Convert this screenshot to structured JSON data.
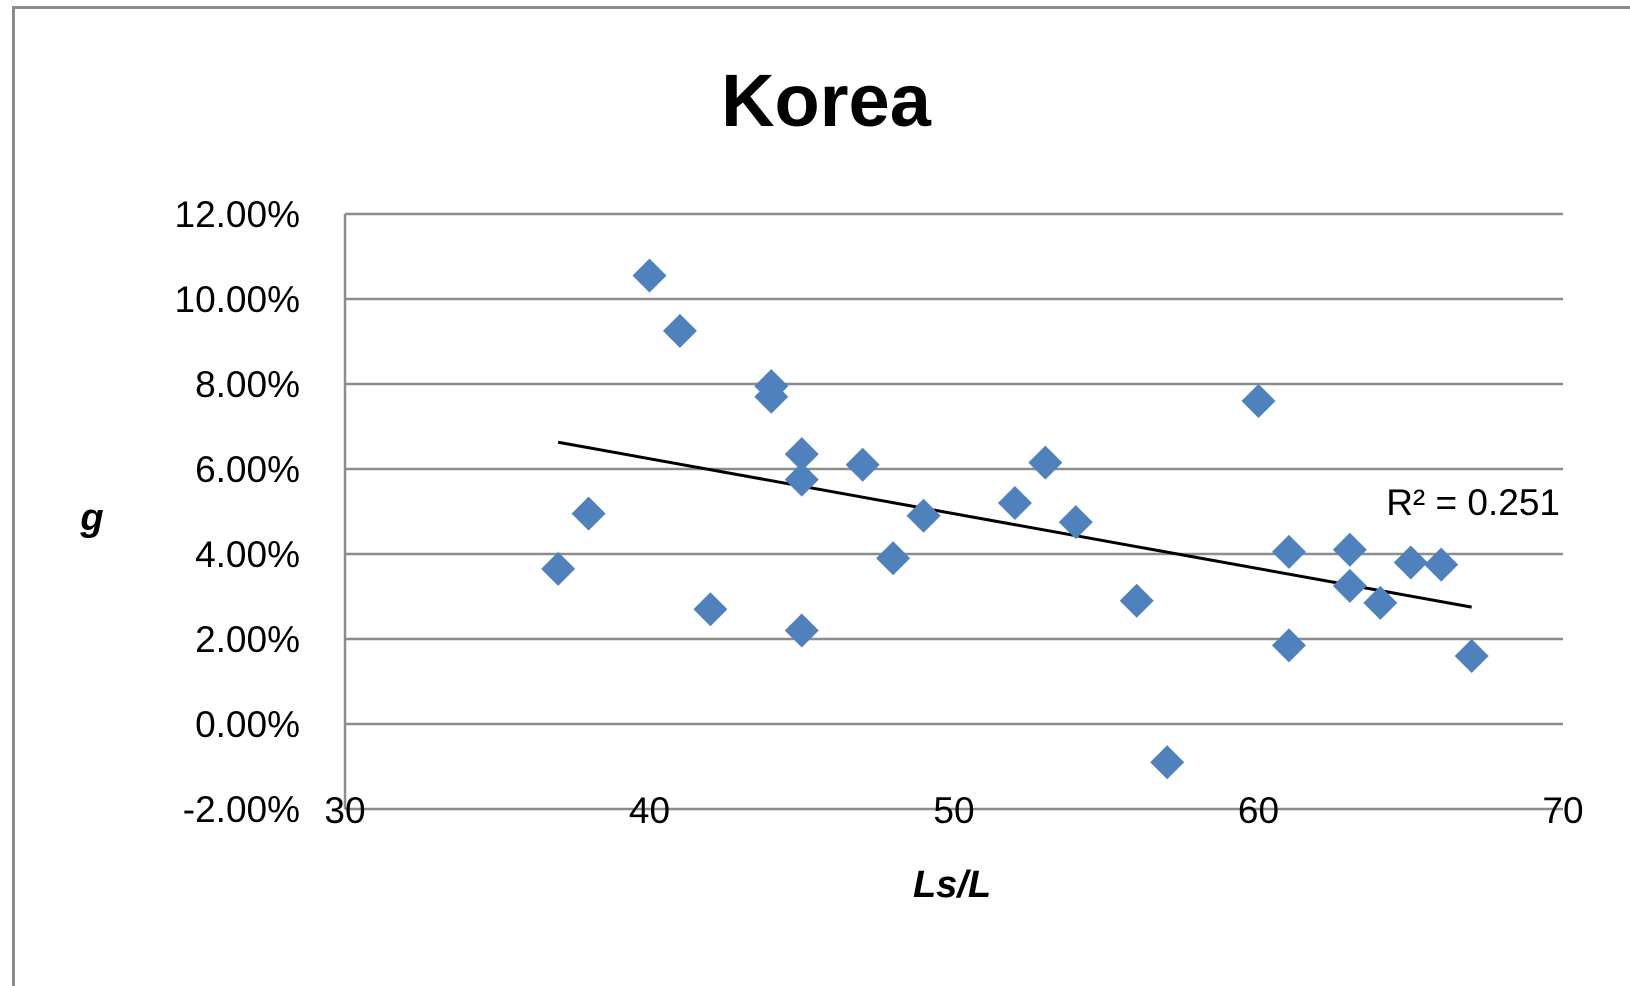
{
  "chart_data": {
    "type": "scatter",
    "title": "Korea",
    "xlabel": "Ls/L",
    "ylabel": "g",
    "xlim": [
      30,
      70
    ],
    "ylim": [
      -0.02,
      0.12
    ],
    "x_ticks": [
      "30",
      "40",
      "50",
      "60",
      "70"
    ],
    "y_ticks": [
      "-2.00%",
      "0.00%",
      "2.00%",
      "4.00%",
      "6.00%",
      "8.00%",
      "10.00%",
      "12.00%"
    ],
    "grid": "horizontal",
    "marker": "diamond",
    "marker_color": "#4f81bd",
    "series": [
      {
        "points": [
          [
            37,
            0.0365
          ],
          [
            38,
            0.0495
          ],
          [
            40,
            0.1055
          ],
          [
            41,
            0.0925
          ],
          [
            42,
            0.027
          ],
          [
            44,
            0.0795
          ],
          [
            44,
            0.077
          ],
          [
            45,
            0.0635
          ],
          [
            45,
            0.0575
          ],
          [
            45,
            0.022
          ],
          [
            47,
            0.061
          ],
          [
            48,
            0.039
          ],
          [
            49,
            0.049
          ],
          [
            52,
            0.052
          ],
          [
            53,
            0.0615
          ],
          [
            54,
            0.0475
          ],
          [
            56,
            0.029
          ],
          [
            57,
            -0.009
          ],
          [
            60,
            0.076
          ],
          [
            61,
            0.0405
          ],
          [
            61,
            0.0185
          ],
          [
            63,
            0.041
          ],
          [
            63,
            0.0325
          ],
          [
            64,
            0.0285
          ],
          [
            65,
            0.038
          ],
          [
            66,
            0.0375
          ],
          [
            67,
            0.016
          ]
        ]
      }
    ],
    "trendline": {
      "type": "linear",
      "from": [
        37,
        0.0663
      ],
      "to": [
        67,
        0.0275
      ],
      "color": "#000000"
    },
    "annotations": [
      "R² = 0.251"
    ]
  }
}
